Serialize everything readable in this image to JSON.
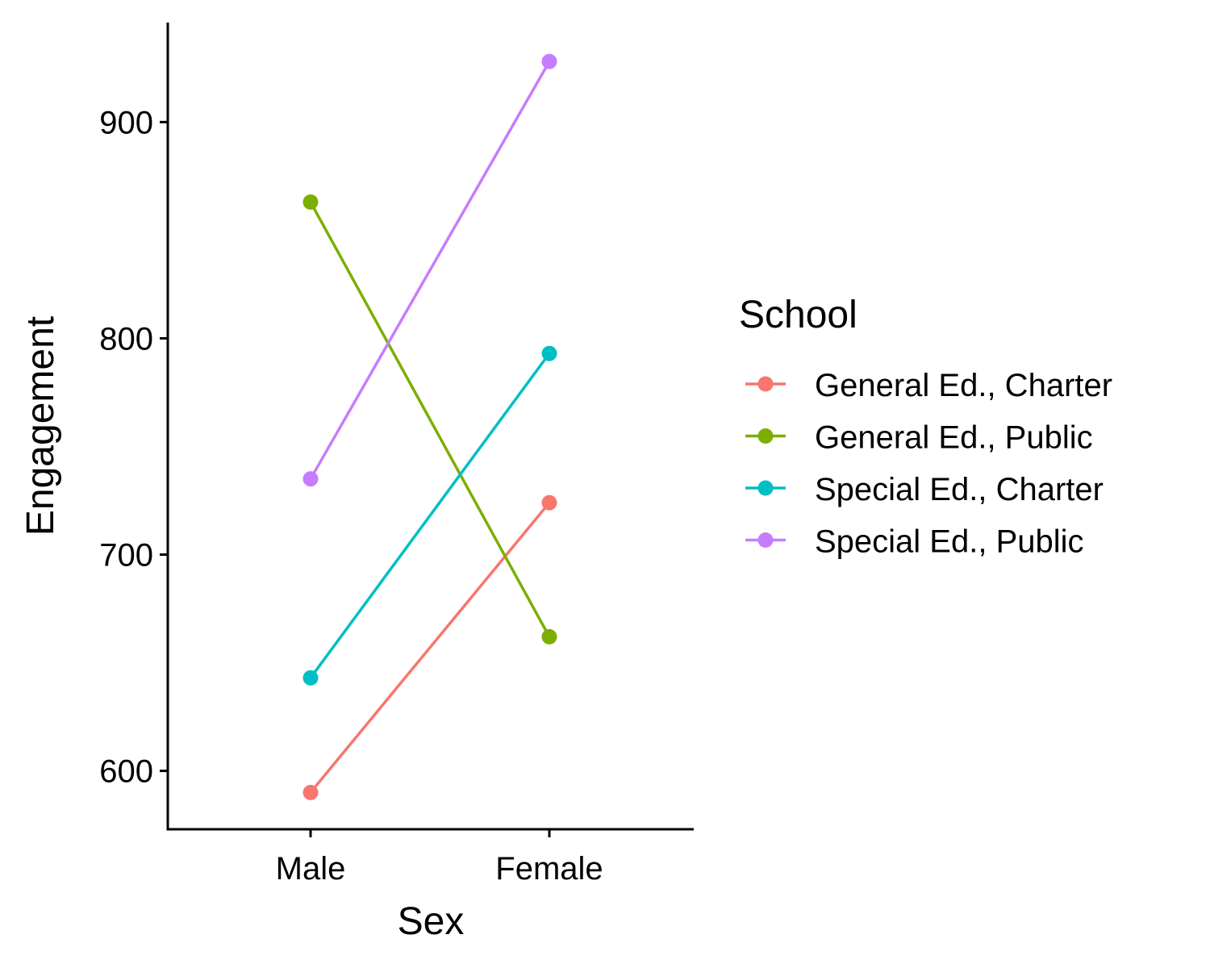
{
  "chart_data": {
    "type": "line",
    "categories": [
      "Male",
      "Female"
    ],
    "xlabel": "Sex",
    "ylabel": "Engagement",
    "ylim": [
      573,
      946
    ],
    "yticks": [
      600,
      700,
      800,
      900
    ],
    "grid": false,
    "legend": {
      "title": "School",
      "position": "right"
    },
    "series": [
      {
        "name": "General Ed., Charter",
        "color": "#F8766D",
        "values": [
          590,
          724
        ]
      },
      {
        "name": "General Ed., Public",
        "color": "#7CAE00",
        "values": [
          863,
          662
        ]
      },
      {
        "name": "Special Ed., Charter",
        "color": "#00BFC4",
        "values": [
          643,
          793
        ]
      },
      {
        "name": "Special Ed., Public",
        "color": "#C77CFF",
        "values": [
          735,
          928
        ]
      }
    ]
  }
}
